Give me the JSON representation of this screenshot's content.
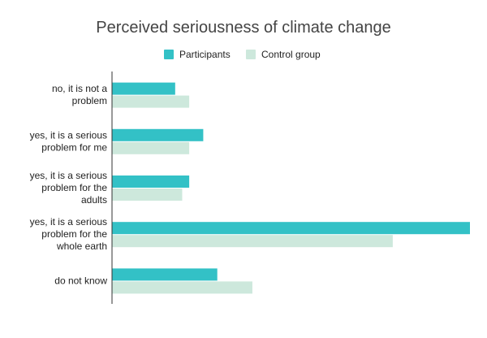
{
  "chart_data": {
    "type": "bar",
    "orientation": "horizontal",
    "title": "Perceived seriousness of climate change",
    "categories": [
      "no, it is not a problem",
      "yes, it is a serious problem for me",
      "yes, it is a serious problem for the adults",
      "yes, it is a serious problem for the whole earth",
      "do not know"
    ],
    "series": [
      {
        "name": "Participants",
        "color": "#33c1c6",
        "values": [
          9,
          13,
          11,
          51,
          15
        ]
      },
      {
        "name": "Control group",
        "color": "#cde8dc",
        "values": [
          11,
          11,
          10,
          40,
          20
        ]
      }
    ],
    "xlim": [
      0,
      51
    ],
    "legend": "top-center",
    "grid": false,
    "axis_ticks_visible": false
  }
}
